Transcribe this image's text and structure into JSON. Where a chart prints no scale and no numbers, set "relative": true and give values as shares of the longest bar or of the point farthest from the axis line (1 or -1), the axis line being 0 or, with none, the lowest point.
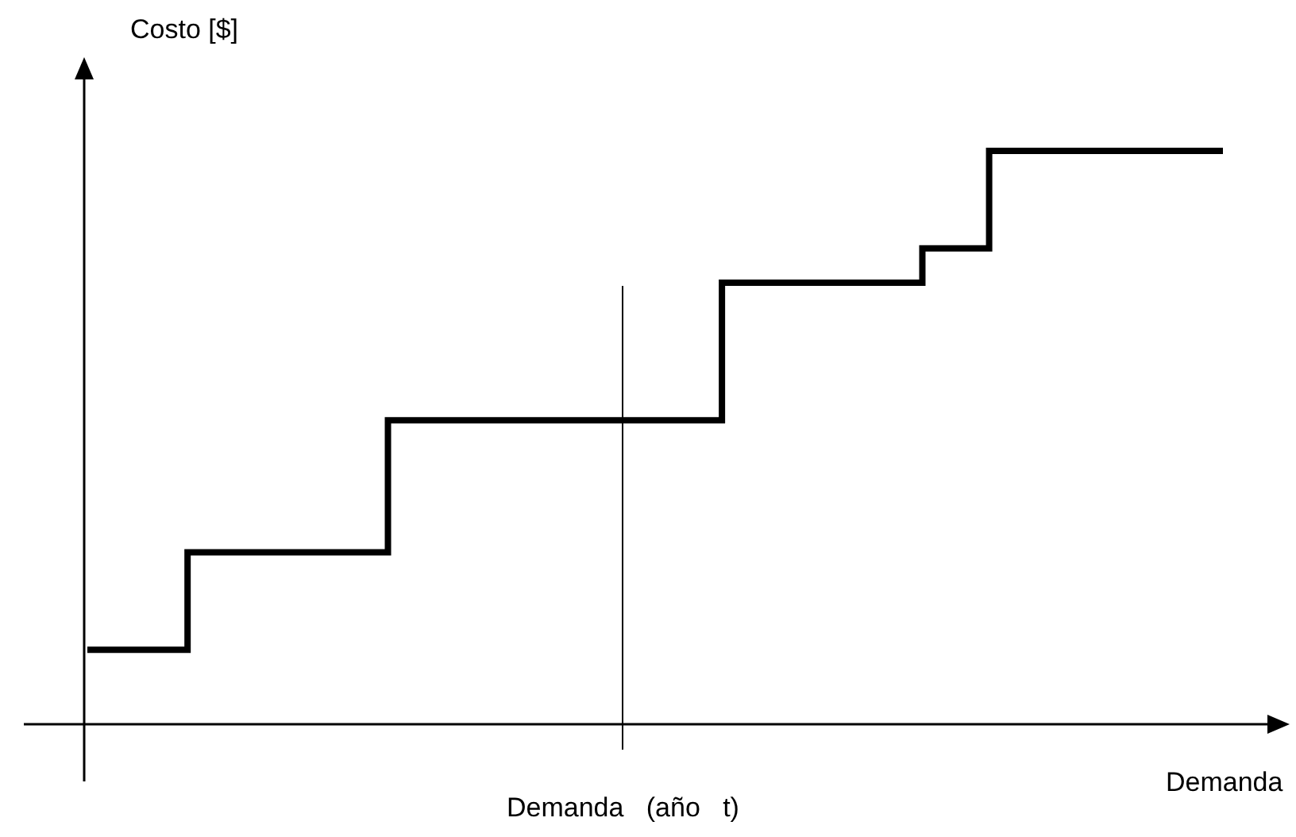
{
  "chart_data": {
    "type": "step",
    "relative": true,
    "xlabel": "Demanda",
    "ylabel": "Costo [$]",
    "categories": [
      null,
      null,
      null,
      null,
      null,
      null,
      null,
      null,
      null,
      null,
      null,
      null,
      null,
      null,
      null,
      null,
      null,
      null,
      null,
      null,
      null,
      null,
      null,
      null,
      null,
      null,
      null,
      null,
      null,
      null,
      null,
      null,
      null,
      null,
      null
    ],
    "values": [
      0.13,
      0.13,
      0.13,
      0.3,
      0.3,
      0.3,
      0.3,
      0.3,
      0.3,
      0.53,
      0.53,
      0.53,
      0.53,
      0.53,
      0.53,
      0.53,
      0.53,
      0.53,
      0.53,
      0.77,
      0.77,
      0.77,
      0.77,
      0.77,
      0.77,
      0.83,
      0.83,
      1,
      1,
      1,
      1,
      1,
      1,
      1,
      1
    ],
    "color": "#000000",
    "marker": "none",
    "line_style": "solid",
    "grid": false,
    "annotations": [
      "Demanda   (año   t)"
    ]
  }
}
